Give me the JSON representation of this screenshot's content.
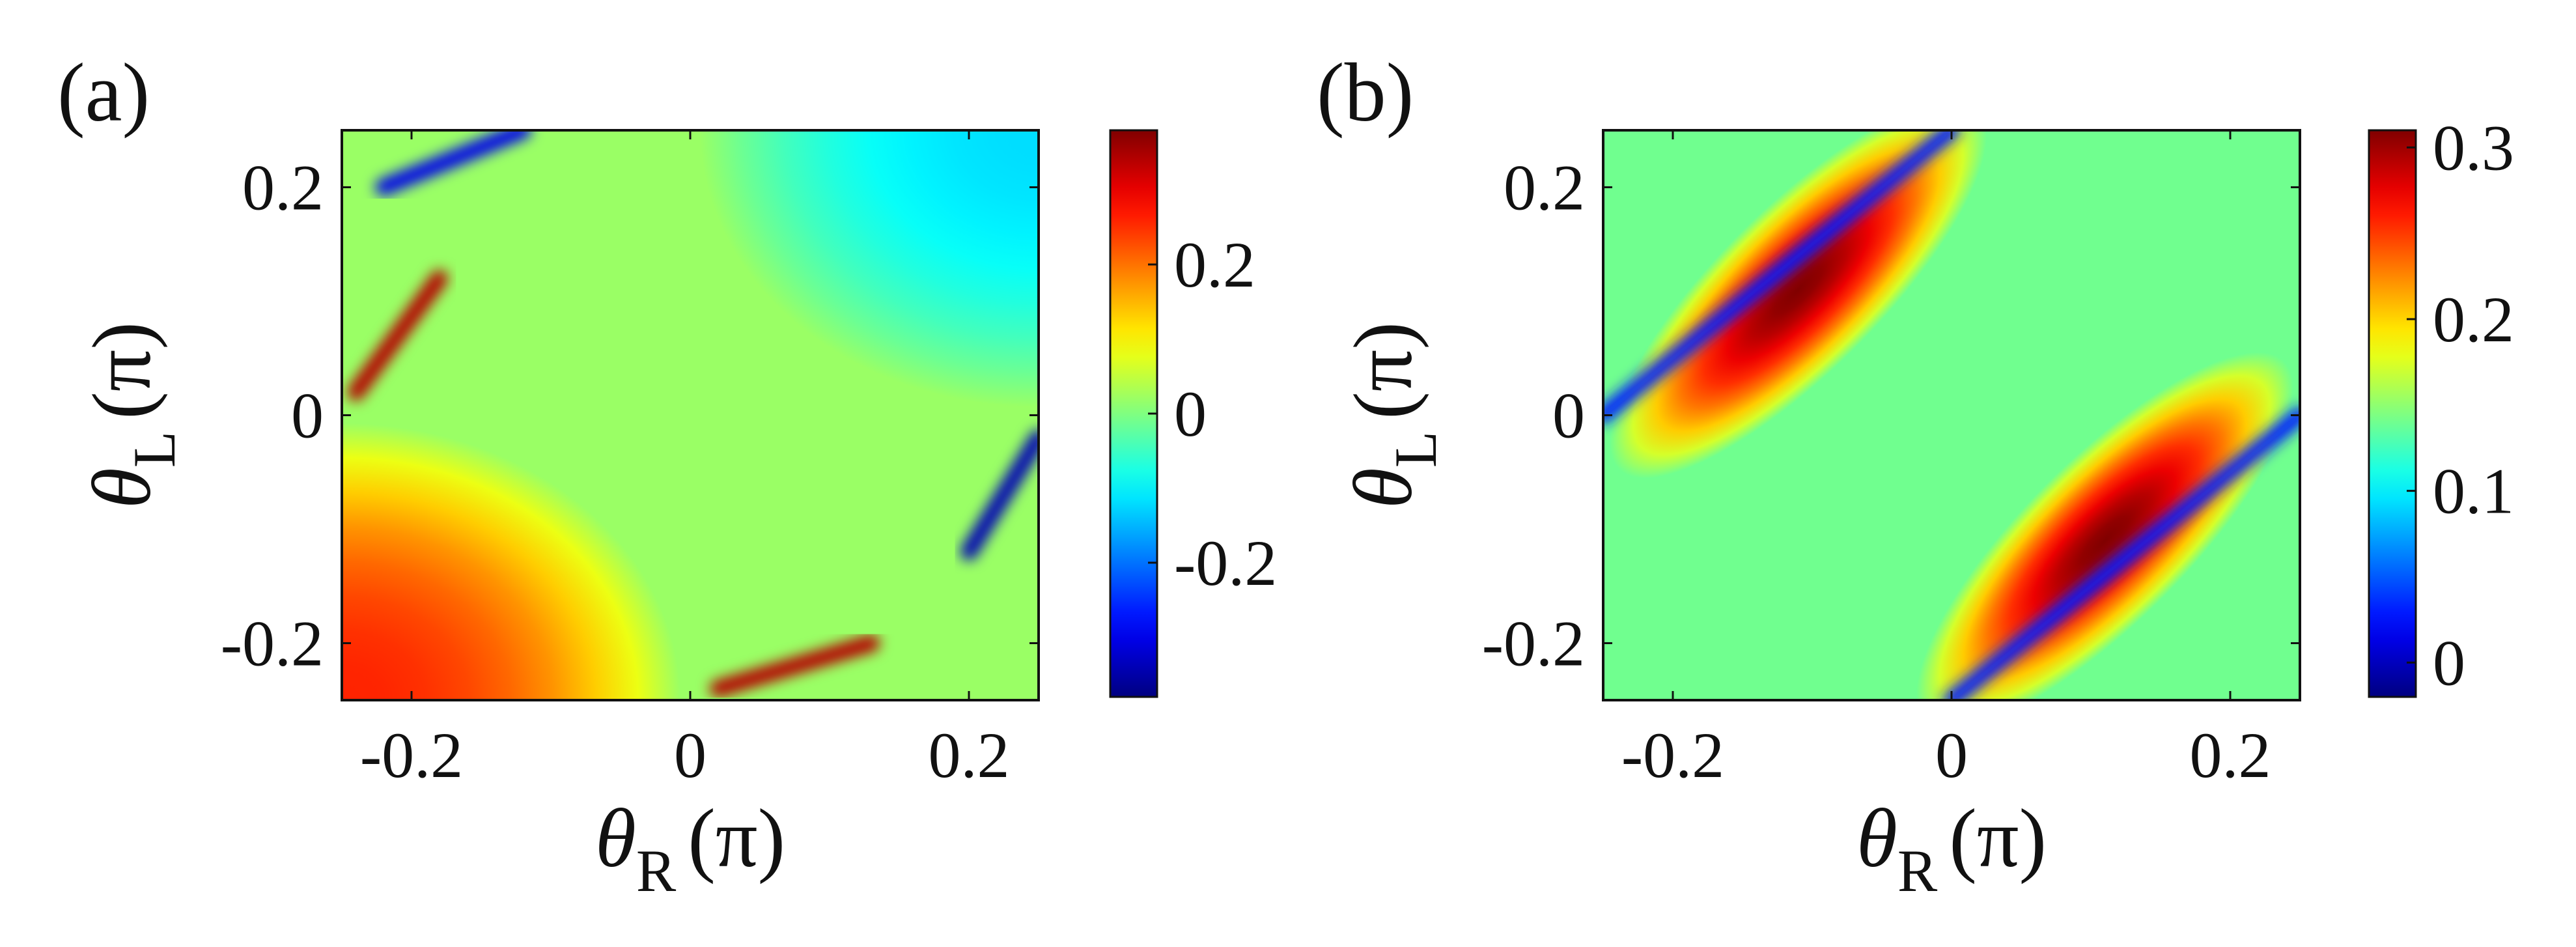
{
  "chart_data": [
    {
      "type": "heatmap",
      "panel_label": "(a)",
      "x": {
        "label_symbol": "θ",
        "label_sub": "R",
        "label_unit": "(π)",
        "range": [
          -0.25,
          0.25
        ],
        "ticks": [
          -0.2,
          0,
          0.2
        ],
        "tick_labels": [
          "-0.2",
          "0",
          "0.2"
        ]
      },
      "y": {
        "label_symbol": "θ",
        "label_sub": "L",
        "label_unit": "(π)",
        "range": [
          -0.25,
          0.25
        ],
        "ticks": [
          -0.2,
          0,
          0.2
        ],
        "tick_labels": [
          "-0.2",
          "0",
          "0.2"
        ]
      },
      "colorbar": {
        "range": [
          -0.38,
          0.38
        ],
        "ticks": [
          -0.2,
          0,
          0.2
        ],
        "tick_labels": [
          "-0.2",
          "0",
          "0.2"
        ],
        "colormap": "jet"
      },
      "features": [
        {
          "shape": "circle",
          "center": [
            -0.25,
            -0.25
          ],
          "radius": 0.18,
          "value": 0.26,
          "description": "warm quarter-disc lower-left"
        },
        {
          "shape": "circle",
          "center": [
            0.25,
            0.25
          ],
          "radius": 0.18,
          "value": -0.12,
          "description": "cool quarter-disc upper-right"
        },
        {
          "shape": "ridge",
          "from": [
            -0.22,
            0.2
          ],
          "to": [
            -0.12,
            0.25
          ],
          "value": -0.3
        },
        {
          "shape": "ridge",
          "from": [
            -0.24,
            0.02
          ],
          "to": [
            -0.18,
            0.12
          ],
          "value": 0.34
        },
        {
          "shape": "ridge",
          "from": [
            0.02,
            -0.24
          ],
          "to": [
            0.13,
            -0.2
          ],
          "value": 0.34
        },
        {
          "shape": "ridge",
          "from": [
            0.2,
            -0.12
          ],
          "to": [
            0.25,
            -0.02
          ],
          "value": -0.34
        }
      ]
    },
    {
      "type": "heatmap",
      "panel_label": "(b)",
      "x": {
        "label_symbol": "θ",
        "label_sub": "R",
        "label_unit": "(π)",
        "range": [
          -0.25,
          0.25
        ],
        "ticks": [
          -0.2,
          0,
          0.2
        ],
        "tick_labels": [
          "-0.2",
          "0",
          "0.2"
        ]
      },
      "y": {
        "label_symbol": "θ",
        "label_sub": "L",
        "label_unit": "(π)",
        "range": [
          -0.25,
          0.25
        ],
        "ticks": [
          -0.2,
          0,
          0.2
        ],
        "tick_labels": [
          "-0.2",
          "0",
          "0.2"
        ]
      },
      "colorbar": {
        "range": [
          -0.02,
          0.31
        ],
        "ticks": [
          0,
          0.1,
          0.2,
          0.3
        ],
        "tick_labels": [
          "0",
          "0.1",
          "0.2",
          "0.3"
        ],
        "colormap": "jet"
      },
      "background_value": 0.14,
      "features": [
        {
          "shape": "ellipse",
          "center": [
            -0.11,
            0.11
          ],
          "angle_deg": 45,
          "semi_major": 0.14,
          "semi_minor": 0.055,
          "value": 0.31
        },
        {
          "shape": "ellipse",
          "center": [
            0.11,
            -0.11
          ],
          "angle_deg": 45,
          "semi_major": 0.14,
          "semi_minor": 0.055,
          "value": 0.31
        },
        {
          "shape": "ridge",
          "from": [
            -0.25,
            0.0
          ],
          "to": [
            0.0,
            0.25
          ],
          "value": 0.03
        },
        {
          "shape": "ridge",
          "from": [
            0.0,
            -0.25
          ],
          "to": [
            0.25,
            0.0
          ],
          "value": 0.03
        }
      ]
    }
  ]
}
